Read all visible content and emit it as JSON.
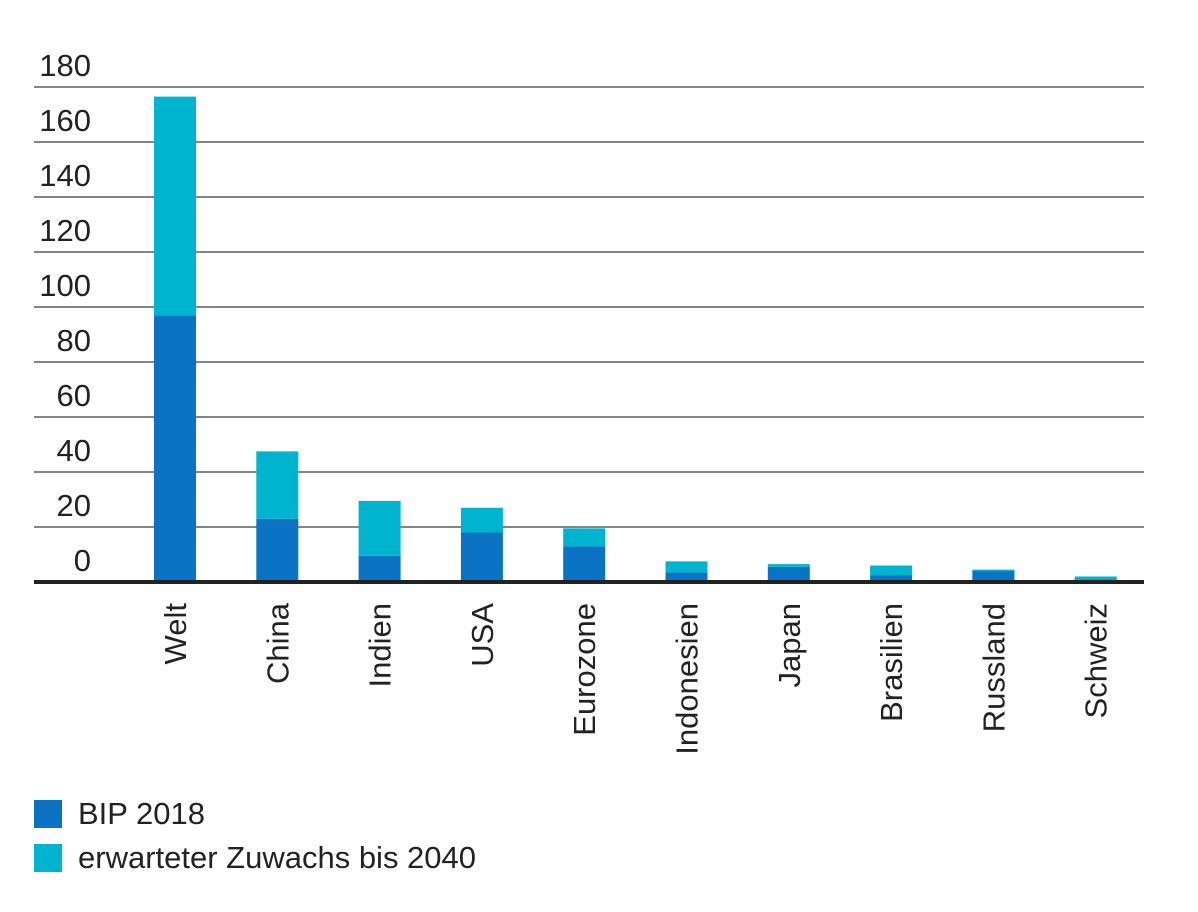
{
  "chart_data": {
    "type": "bar",
    "stacked": true,
    "title": "",
    "xlabel": "",
    "ylabel": "",
    "ylim": [
      0,
      180
    ],
    "yticks": [
      0,
      20,
      40,
      60,
      80,
      100,
      120,
      140,
      160,
      180
    ],
    "grid": true,
    "legend_position": "bottom-left",
    "categories": [
      "Welt",
      "China",
      "Indien",
      "USA",
      "Eurozone",
      "Indonesien",
      "Japan",
      "Brasilien",
      "Russland",
      "Schweiz"
    ],
    "series": [
      {
        "name": "BIP 2018",
        "color": "#0a73c4",
        "values": [
          97,
          23,
          9.5,
          18,
          13,
          3.5,
          5.5,
          2.5,
          4,
          1
        ]
      },
      {
        "name": "erwarteter Zuwachs bis 2040",
        "color": "#00b4cf",
        "values": [
          79.5,
          24.5,
          20,
          9,
          6.5,
          4,
          1,
          3.5,
          0.5,
          1
        ]
      }
    ]
  }
}
